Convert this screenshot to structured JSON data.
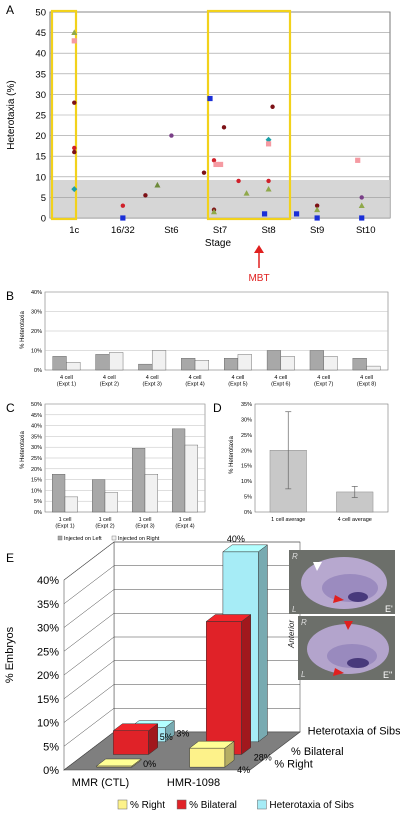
{
  "panels": {
    "A": "A",
    "B": "B",
    "C": "C",
    "D": "D",
    "E": "E"
  },
  "chart_data": [
    {
      "panel": "A",
      "type": "scatter",
      "ylabel": "Heterotaxia (%)",
      "xlabel": "Stage",
      "ylim": [
        0,
        50
      ],
      "yticks": [
        "0",
        "5",
        "10",
        "15",
        "20",
        "25",
        "30",
        "35",
        "40",
        "45",
        "50"
      ],
      "categories": [
        "1c",
        "16/32",
        "St6",
        "St7",
        "St8",
        "St9",
        "St10"
      ],
      "annotation": {
        "text": "MBT",
        "category": "St8",
        "color": "#e0201f"
      },
      "grid": true,
      "points": [
        {
          "x": "1c",
          "y": 45,
          "color": "#8fa84a",
          "shape": "triangle"
        },
        {
          "x": "1c",
          "y": 43,
          "color": "#f59aa2",
          "shape": "square"
        },
        {
          "x": "1c",
          "y": 28,
          "color": "#7d1116",
          "shape": "circle"
        },
        {
          "x": "1c",
          "y": 17,
          "color": "#d0202a",
          "shape": "circle"
        },
        {
          "x": "1c",
          "y": 16,
          "color": "#7d1116",
          "shape": "circle"
        },
        {
          "x": "1c",
          "y": 7,
          "color": "#1aa0a8",
          "shape": "diamond"
        },
        {
          "x": "16/32",
          "y": 3,
          "color": "#d0202a",
          "shape": "circle"
        },
        {
          "x": "16/32",
          "y": 0,
          "color": "#1a2fd8",
          "shape": "square"
        },
        {
          "x": "St6",
          "y": 20,
          "color": "#7a3f88",
          "shape": "circle"
        },
        {
          "x": "St6",
          "y": 8,
          "color": "#6d8a3a",
          "shape": "triangle"
        },
        {
          "x": "St6",
          "y": 5.5,
          "color": "#7d1116",
          "shape": "circle"
        },
        {
          "x": "St7",
          "y": 29,
          "color": "#1a2fd8",
          "shape": "square"
        },
        {
          "x": "St7",
          "y": 22,
          "color": "#7d1116",
          "shape": "circle"
        },
        {
          "x": "St7",
          "y": 14,
          "color": "#d0202a",
          "shape": "circle"
        },
        {
          "x": "St7",
          "y": 13,
          "color": "#f59aa2",
          "shape": "square"
        },
        {
          "x": "St7",
          "y": 11,
          "color": "#7d1116",
          "shape": "circle"
        },
        {
          "x": "St7",
          "y": 2,
          "color": "#7d1116",
          "shape": "circle"
        },
        {
          "x": "St7",
          "y": 1.5,
          "color": "#8fa84a",
          "shape": "triangle"
        },
        {
          "x": "St8",
          "y": 27,
          "color": "#7d1116",
          "shape": "circle"
        },
        {
          "x": "St8",
          "y": 19,
          "color": "#1aa0a8",
          "shape": "diamond"
        },
        {
          "x": "St8",
          "y": 18,
          "color": "#f59aa2",
          "shape": "square"
        },
        {
          "x": "St8",
          "y": 9,
          "color": "#d0202a",
          "shape": "circle"
        },
        {
          "x": "St8",
          "y": 6,
          "color": "#8fa84a",
          "shape": "triangle"
        },
        {
          "x": "St8",
          "y": 7,
          "color": "#8fa84a",
          "shape": "triangle"
        },
        {
          "x": "St8",
          "y": 1,
          "color": "#1a2fd8",
          "shape": "square"
        },
        {
          "x": "St8",
          "y": 1,
          "color": "#1a2fd8",
          "shape": "square"
        },
        {
          "x": "St8",
          "y": 13,
          "color": "#f59aa2",
          "shape": "square"
        },
        {
          "x": "St8",
          "y": 9,
          "color": "#d0202a",
          "shape": "circle"
        },
        {
          "x": "St9",
          "y": 3,
          "color": "#7d1116",
          "shape": "circle"
        },
        {
          "x": "St9",
          "y": 2,
          "color": "#8fa84a",
          "shape": "triangle"
        },
        {
          "x": "St9",
          "y": 0,
          "color": "#1a2fd8",
          "shape": "square"
        },
        {
          "x": "St10",
          "y": 14,
          "color": "#f59aa2",
          "shape": "square"
        },
        {
          "x": "St10",
          "y": 5,
          "color": "#7a3f88",
          "shape": "circle"
        },
        {
          "x": "St10",
          "y": 3,
          "color": "#8fa84a",
          "shape": "triangle"
        },
        {
          "x": "St10",
          "y": 0,
          "color": "#1a2fd8",
          "shape": "square"
        }
      ]
    },
    {
      "panel": "B",
      "type": "bar",
      "ylabel": "% Heterotaxia",
      "ylim": [
        0,
        40
      ],
      "yticks": [
        "0%",
        "10%",
        "20%",
        "30%",
        "40%"
      ],
      "categories": [
        [
          "4 cell",
          "(Expt 1)"
        ],
        [
          "4 cell",
          "(Expt 2)"
        ],
        [
          "4 cell",
          "(Expt 3)"
        ],
        [
          "4 cell",
          "(Expt 4)"
        ],
        [
          "4 cell",
          "(Expt 5)"
        ],
        [
          "4 cell",
          "(Expt 6)"
        ],
        [
          "4 cell",
          "(Expt 7)"
        ],
        [
          "4 cell",
          "(Expt 8)"
        ]
      ],
      "series": [
        {
          "values": [
            7,
            8,
            3,
            6,
            6,
            10,
            10,
            6
          ],
          "color": "#a8a8a8"
        },
        {
          "values": [
            4,
            9,
            10,
            5,
            8,
            7,
            7,
            2
          ],
          "color": "#f1f1f1"
        }
      ]
    },
    {
      "panel": "C",
      "type": "bar",
      "ylabel": "% Heterotaxia",
      "ylim": [
        0,
        50
      ],
      "yticks": [
        "0%",
        "5%",
        "10%",
        "15%",
        "20%",
        "25%",
        "30%",
        "35%",
        "40%",
        "45%",
        "50%"
      ],
      "categories": [
        [
          "1 cell",
          "(Expt 1)"
        ],
        [
          "1 cell",
          "(Expt 2)"
        ],
        [
          "1 cell",
          "(Expt 3)"
        ],
        [
          "1 cell",
          "(Expt 4)"
        ]
      ],
      "series": [
        {
          "name": "Injected on Left",
          "values": [
            17.5,
            15,
            29.5,
            38.5
          ],
          "color": "#a8a8a8"
        },
        {
          "name": "Injected on Right",
          "values": [
            7,
            9,
            17.5,
            31
          ],
          "color": "#f1f1f1"
        }
      ]
    },
    {
      "panel": "D",
      "type": "bar",
      "ylabel": "% Heterotaxia",
      "ylim": [
        0,
        35
      ],
      "yticks": [
        "0%",
        "5%",
        "10%",
        "15%",
        "20%",
        "25%",
        "30%",
        "35%"
      ],
      "categories": [
        "1 cell average",
        "4 cell average"
      ],
      "values": [
        20,
        6.5
      ],
      "errors": [
        12.5,
        1.8
      ]
    },
    {
      "panel": "E",
      "type": "bar",
      "ylabel": "% Embryos",
      "ylim": [
        0,
        40
      ],
      "yticks": [
        "0%",
        "5%",
        "10%",
        "15%",
        "20%",
        "25%",
        "30%",
        "35%",
        "40%"
      ],
      "categories": [
        "MMR (CTL)",
        "HMR-1098"
      ],
      "depth_labels": [
        "Heterotaxia of Sibs",
        "% Bilateral",
        "% Right"
      ],
      "series": [
        {
          "name": "% Right",
          "values": [
            0,
            4
          ],
          "labels": [
            "0%",
            "4%"
          ],
          "color": "#fdf28a"
        },
        {
          "name": "% Bilateral",
          "values": [
            5,
            28
          ],
          "labels": [
            "5%",
            "28%"
          ],
          "color": "#e02228"
        },
        {
          "name": "Heterotaxia of Sibs",
          "values": [
            3,
            40
          ],
          "labels": [
            "3%",
            "40%"
          ],
          "color": "#a6ecf6"
        }
      ]
    }
  ],
  "embryo": {
    "top": {
      "anterior": "Anterior",
      "r": "R",
      "l": "L",
      "tag": "E'"
    },
    "bottom": {
      "r": "R",
      "l": "L",
      "tag": "E\""
    }
  }
}
